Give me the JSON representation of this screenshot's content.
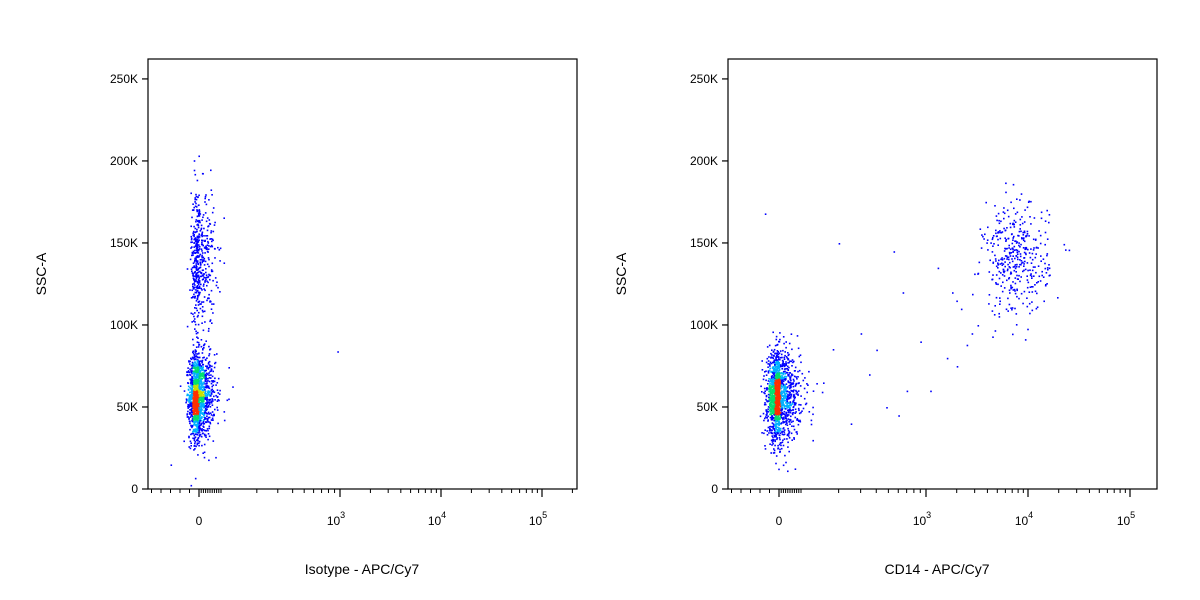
{
  "chart_data": [
    {
      "type": "scatter",
      "title": "",
      "xlabel": "Isotype - APC/Cy7",
      "ylabel": "SSC-A",
      "x_scale": "biexponential",
      "xlim": [
        -600,
        200000
      ],
      "ylim": [
        0,
        262144
      ],
      "x_ticks": [
        {
          "value": 0,
          "base": "0",
          "exp": ""
        },
        {
          "value": 1000,
          "base": "10",
          "exp": "3"
        },
        {
          "value": 10000,
          "base": "10",
          "exp": "4"
        },
        {
          "value": 100000,
          "base": "10",
          "exp": "5"
        }
      ],
      "y_ticks": [
        {
          "value": 0,
          "label": "0"
        },
        {
          "value": 50000,
          "label": "50K"
        },
        {
          "value": 100000,
          "label": "100K"
        },
        {
          "value": 150000,
          "label": "150K"
        },
        {
          "value": 200000,
          "label": "200K"
        },
        {
          "value": 250000,
          "label": "250K"
        }
      ],
      "color_scale": [
        "#0000ff",
        "#00b0ff",
        "#00e070",
        "#c8e000",
        "#ff3000"
      ],
      "populations": [
        {
          "x_center": -20,
          "x_spread": 45,
          "y_center": 57000,
          "y_spread": 13000,
          "count": 1500
        },
        {
          "x_center": -10,
          "x_spread": 40,
          "y_center": 140000,
          "y_spread": 22000,
          "count": 500
        }
      ],
      "outliers": [
        {
          "x": 950,
          "y": 84000
        },
        {
          "x": -300,
          "y": 15000
        }
      ]
    },
    {
      "type": "scatter",
      "title": "",
      "xlabel": "CD14 - APC/Cy7",
      "ylabel": "SSC-A",
      "x_scale": "biexponential",
      "xlim": [
        -600,
        200000
      ],
      "ylim": [
        0,
        262144
      ],
      "x_ticks": [
        {
          "value": 0,
          "base": "0",
          "exp": ""
        },
        {
          "value": 1000,
          "base": "10",
          "exp": "3"
        },
        {
          "value": 10000,
          "base": "10",
          "exp": "4"
        },
        {
          "value": 100000,
          "base": "10",
          "exp": "5"
        }
      ],
      "y_ticks": [
        {
          "value": 0,
          "label": "0"
        },
        {
          "value": 50000,
          "label": "50K"
        },
        {
          "value": 100000,
          "label": "100K"
        },
        {
          "value": 150000,
          "label": "150K"
        },
        {
          "value": 200000,
          "label": "200K"
        },
        {
          "value": 250000,
          "label": "250K"
        }
      ],
      "color_scale": [
        "#0000ff",
        "#00b0ff",
        "#00e070",
        "#c8e000",
        "#ff3000"
      ],
      "populations": [
        {
          "x_center": -20,
          "x_spread": 55,
          "y_center": 57000,
          "y_spread": 13000,
          "count": 1600
        },
        {
          "x_center": 7500,
          "x_spread": 2500,
          "y_center": 140000,
          "y_spread": 17000,
          "count": 400
        }
      ],
      "outliers": [
        {
          "x": 200,
          "y": 150000
        },
        {
          "x": 300,
          "y": 95000
        },
        {
          "x": 350,
          "y": 70000
        },
        {
          "x": 550,
          "y": 145000
        },
        {
          "x": 650,
          "y": 120000
        },
        {
          "x": 700,
          "y": 60000
        },
        {
          "x": 900,
          "y": 90000
        },
        {
          "x": 1300,
          "y": 135000
        },
        {
          "x": 1600,
          "y": 80000
        },
        {
          "x": 2000,
          "y": 75000
        },
        {
          "x": 2200,
          "y": 110000
        },
        {
          "x": 2800,
          "y": 95000
        },
        {
          "x": 3200,
          "y": 100000
        },
        {
          "x": 250,
          "y": 40000
        },
        {
          "x": 480,
          "y": 50000
        },
        {
          "x": 150,
          "y": 65000
        },
        {
          "x": 1800,
          "y": 120000
        },
        {
          "x": 2500,
          "y": 88000
        },
        {
          "x": 400,
          "y": 85000
        },
        {
          "x": 600,
          "y": 45000
        },
        {
          "x": 1100,
          "y": 60000
        },
        {
          "x": -150,
          "y": 168000
        }
      ]
    }
  ]
}
